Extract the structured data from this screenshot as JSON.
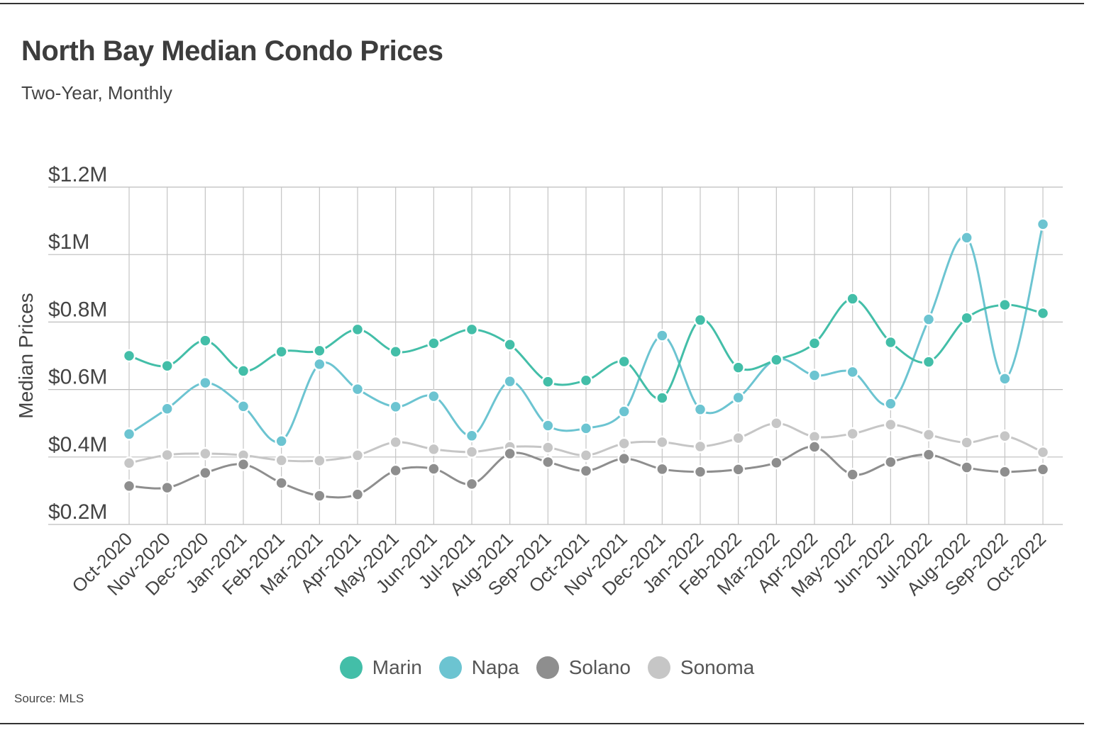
{
  "title": "North Bay Median Condo Prices",
  "subtitle": "Two-Year, Monthly",
  "source": "Source:  MLS",
  "chart_data": {
    "type": "line",
    "title": "North Bay Median Condo Prices",
    "subtitle": "Two-Year, Monthly",
    "xlabel": "",
    "ylabel": "Median Prices",
    "ylim": [
      200000,
      1200000
    ],
    "yticks": [
      200000,
      400000,
      600000,
      800000,
      1000000,
      1200000
    ],
    "ytick_labels": [
      "$0.2M",
      "$0.4M",
      "$0.6M",
      "$0.8M",
      "$1M",
      "$1.2M"
    ],
    "categories": [
      "Oct-2020",
      "Nov-2020",
      "Dec-2020",
      "Jan-2021",
      "Feb-2021",
      "Mar-2021",
      "Apr-2021",
      "May-2021",
      "Jun-2021",
      "Jul-2021",
      "Aug-2021",
      "Sep-2021",
      "Oct-2021",
      "Nov-2021",
      "Dec-2021",
      "Jan-2022",
      "Feb-2022",
      "Mar-2022",
      "Apr-2022",
      "May-2022",
      "Jun-2022",
      "Jul-2022",
      "Aug-2022",
      "Sep-2022",
      "Oct-2022"
    ],
    "series": [
      {
        "name": "Marin",
        "color": "#43bea8",
        "values": [
          700000,
          670000,
          745000,
          655000,
          712000,
          715000,
          778000,
          712000,
          737000,
          778000,
          733000,
          623000,
          627000,
          683000,
          575000,
          806000,
          665000,
          688000,
          737000,
          869000,
          740000,
          682000,
          812000,
          851000,
          826000
        ]
      },
      {
        "name": "Napa",
        "color": "#6cc4d1",
        "values": [
          468000,
          543000,
          620000,
          550000,
          447000,
          675000,
          601000,
          549000,
          580000,
          463000,
          624000,
          493000,
          485000,
          535000,
          760000,
          541000,
          576000,
          690000,
          642000,
          652000,
          558000,
          808000,
          1050000,
          632000,
          1090000
        ]
      },
      {
        "name": "Solano",
        "color": "#8e8e8e",
        "values": [
          314000,
          309000,
          353000,
          378000,
          323000,
          285000,
          289000,
          360000,
          365000,
          320000,
          410000,
          385000,
          359000,
          395000,
          364000,
          356000,
          363000,
          383000,
          430000,
          348000,
          385000,
          407000,
          369000,
          356000,
          363000
        ]
      },
      {
        "name": "Sonoma",
        "color": "#c6c6c6",
        "values": [
          382000,
          406000,
          410000,
          405000,
          390000,
          389000,
          405000,
          444000,
          423000,
          415000,
          430000,
          428000,
          405000,
          440000,
          444000,
          431000,
          456000,
          500000,
          460000,
          469000,
          496000,
          466000,
          443000,
          462000,
          414000
        ]
      }
    ],
    "legend": [
      "Marin",
      "Napa",
      "Solano",
      "Sonoma"
    ],
    "legend_position": "bottom-center",
    "grid": true
  }
}
